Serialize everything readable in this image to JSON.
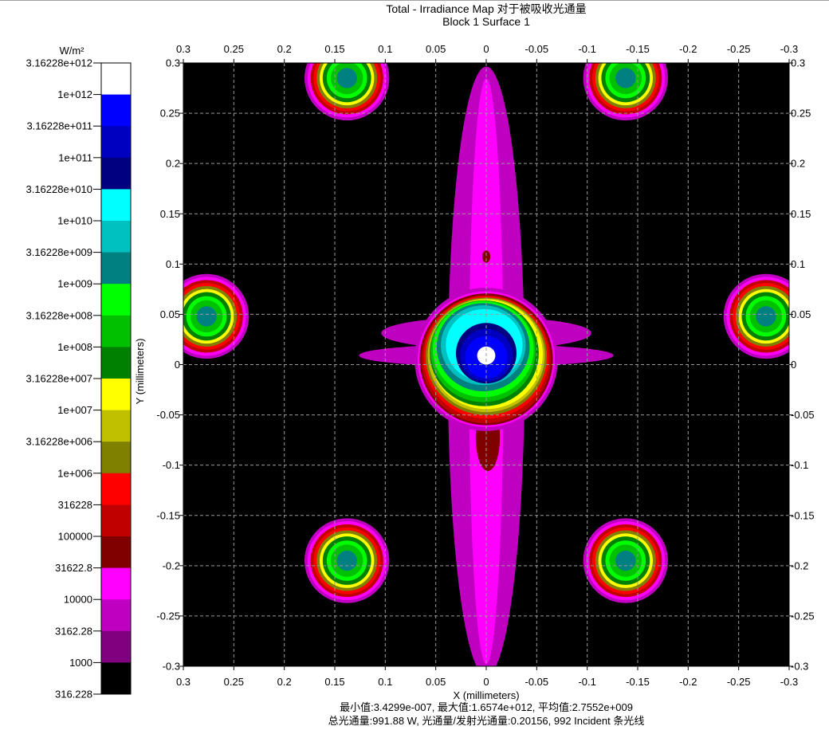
{
  "title_line1": "Total - Irradiance Map 对于被吸收光通量",
  "title_line2": "Block 1 Surface 1",
  "footer_line1": "最小值:3.4299e-007, 最大值:1.6574e+012, 平均值:2.7552e+009",
  "footer_line2": "总光通量:991.88 W, 光通量/发射光通量:0.20156, 992 Incident 条光线",
  "chart_data": {
    "type": "heatmap",
    "xlabel": "X (millimeters)",
    "ylabel": "Y (millimeters)",
    "xlim": [
      0.3,
      -0.3
    ],
    "ylim": [
      -0.3,
      0.3
    ],
    "x_ticks": [
      "0.3",
      "0.25",
      "0.2",
      "0.15",
      "0.1",
      "0.05",
      "0",
      "-0.05",
      "-0.1",
      "-0.15",
      "-0.2",
      "-0.25",
      "-0.3"
    ],
    "y_ticks": [
      "0.3",
      "0.25",
      "0.2",
      "0.15",
      "0.1",
      "0.05",
      "0",
      "-0.05",
      "-0.1",
      "-0.15",
      "-0.2",
      "-0.25",
      "-0.3"
    ],
    "grid": true,
    "colorbar": {
      "unit": "W/m²",
      "scale": "log",
      "labels": [
        "3.16228e+012",
        "1e+012",
        "3.16228e+011",
        "1e+011",
        "3.16228e+010",
        "1e+010",
        "3.16228e+009",
        "1e+009",
        "3.16228e+008",
        "1e+008",
        "3.16228e+007",
        "1e+007",
        "3.16228e+006",
        "1e+006",
        "316228",
        "100000",
        "31622.8",
        "10000",
        "3162.28",
        "1000",
        "316.228"
      ],
      "colors": [
        "#ffffff",
        "#0000ff",
        "#0000c0",
        "#000080",
        "#00ffff",
        "#00c0c0",
        "#008080",
        "#00ff00",
        "#00c000",
        "#008000",
        "#ffff00",
        "#c0c000",
        "#808000",
        "#ff0000",
        "#c00000",
        "#800000",
        "#ff00ff",
        "#c000c0",
        "#800080",
        "#000000"
      ]
    },
    "spots": [
      {
        "x": 0.0,
        "y": 0.01,
        "peak": "white",
        "kind": "central"
      },
      {
        "x": 0.138,
        "y": 0.285,
        "peak": "teal"
      },
      {
        "x": -0.138,
        "y": 0.285,
        "peak": "teal"
      },
      {
        "x": 0.277,
        "y": 0.048,
        "peak": "teal"
      },
      {
        "x": -0.277,
        "y": 0.048,
        "peak": "teal"
      },
      {
        "x": 0.138,
        "y": -0.195,
        "peak": "teal"
      },
      {
        "x": -0.138,
        "y": -0.195,
        "peak": "teal"
      }
    ],
    "stats": {
      "min": "3.4299e-007",
      "max": "1.6574e+012",
      "mean": "2.7552e+009",
      "total_flux_W": 991.88,
      "flux_ratio": 0.20156,
      "incident_rays": 992
    }
  }
}
